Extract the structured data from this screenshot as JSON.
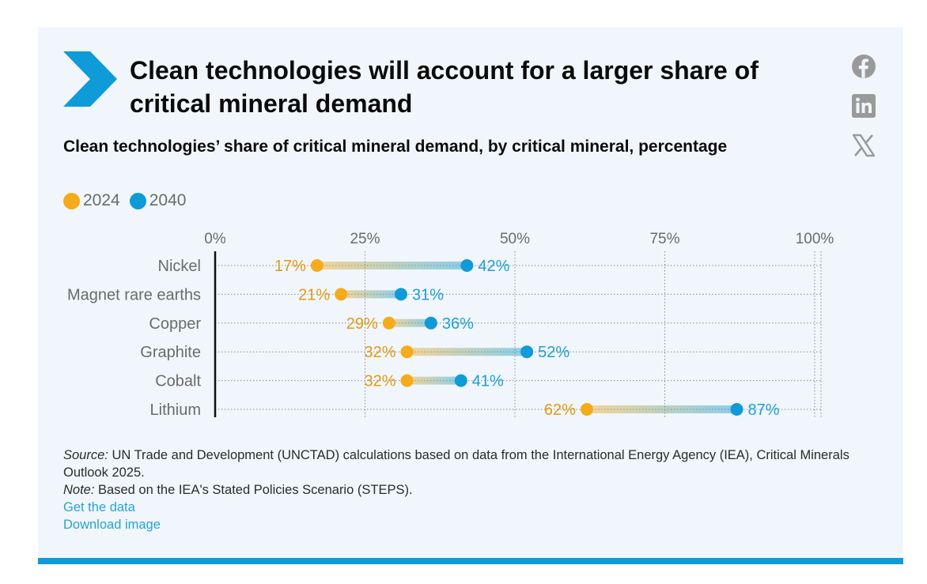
{
  "header": {
    "title": "Clean technologies will account for a larger share of critical mineral demand",
    "subtitle": "Clean technologies’ share of critical mineral demand, by critical mineral, percentage"
  },
  "social": {
    "facebook_icon": "facebook-icon",
    "linkedin_icon": "linkedin-icon",
    "x_icon": "x-icon"
  },
  "colors": {
    "accent": "#0f9bd7",
    "series_2024": "#f5ab1a",
    "series_2040": "#0f9bd7",
    "label_2024": "#e39a12",
    "label_2040": "#1f9fd3",
    "category_text": "#6b6b6b"
  },
  "chart_data": {
    "type": "dumbbell",
    "categories": [
      "Nickel",
      "Magnet rare earths",
      "Copper",
      "Graphite",
      "Cobalt",
      "Lithium"
    ],
    "series": [
      {
        "name": "2024",
        "values": [
          17,
          21,
          29,
          32,
          32,
          62
        ],
        "labels": [
          "17%",
          "21%",
          "29%",
          "32%",
          "32%",
          "62%"
        ]
      },
      {
        "name": "2040",
        "values": [
          42,
          31,
          36,
          52,
          41,
          87
        ],
        "labels": [
          "42%",
          "31%",
          "36%",
          "52%",
          "41%",
          "87%"
        ]
      }
    ],
    "x_ticks": [
      0,
      25,
      50,
      75,
      100
    ],
    "x_tick_labels": [
      "0%",
      "25%",
      "50%",
      "75%",
      "100%"
    ],
    "xlim": [
      0,
      100
    ],
    "grid": true,
    "legend_position": "top-left"
  },
  "footer": {
    "source_label": "Source:",
    "source_text": " UN Trade and Development (UNCTAD) calculations based on data from the International Energy Agency (IEA), Critical Minerals Outlook 2025.",
    "note_label": "Note:",
    "note_text": " Based on the IEA's Stated Policies Scenario (STEPS).",
    "get_data": "Get the data",
    "download_image": "Download image"
  }
}
